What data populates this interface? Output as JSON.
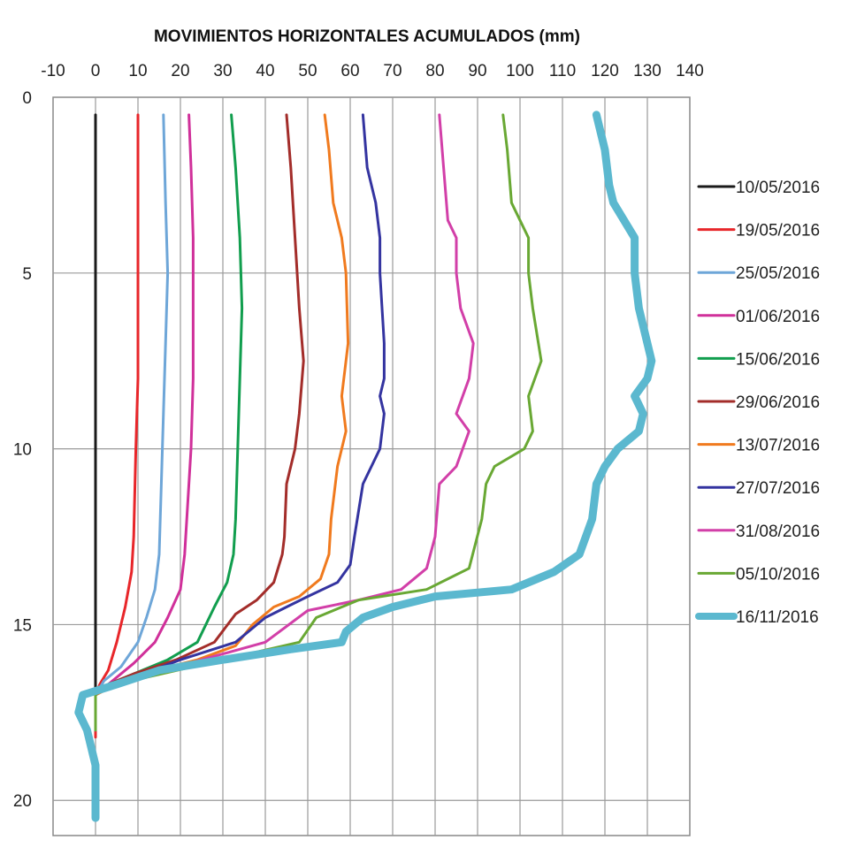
{
  "chart_data": {
    "type": "line",
    "title": "MOVIMIENTOS HORIZONTALES ACUMULADOS (mm)",
    "xlabel": "",
    "ylabel": "",
    "xlim": [
      -10,
      140
    ],
    "ylim": [
      0,
      21
    ],
    "y_inverted": true,
    "x_axis_position": "top",
    "x_ticks": [
      -10,
      0,
      10,
      20,
      30,
      40,
      50,
      60,
      70,
      80,
      90,
      100,
      110,
      120,
      130,
      140
    ],
    "y_ticks": [
      0,
      5,
      10,
      15,
      20
    ],
    "grid": true,
    "legend_position": "right",
    "series": [
      {
        "name": "10/05/2016",
        "color": "#1a1a1a",
        "width": 3,
        "points": [
          [
            0,
            0.5
          ],
          [
            0,
            5
          ],
          [
            0,
            10
          ],
          [
            0,
            15
          ],
          [
            0,
            16.7
          ],
          [
            0,
            17
          ],
          [
            0,
            18
          ]
        ]
      },
      {
        "name": "19/05/2016",
        "color": "#e8262a",
        "width": 3,
        "points": [
          [
            10,
            0.5
          ],
          [
            10,
            3
          ],
          [
            10,
            5
          ],
          [
            10,
            8
          ],
          [
            9.5,
            10
          ],
          [
            9,
            12.5
          ],
          [
            8.5,
            13.5
          ],
          [
            7,
            14.5
          ],
          [
            5,
            15.5
          ],
          [
            3,
            16.3
          ],
          [
            1,
            16.7
          ],
          [
            0,
            17
          ],
          [
            0,
            18.2
          ]
        ]
      },
      {
        "name": "25/05/2016",
        "color": "#6ea6d8",
        "width": 3,
        "points": [
          [
            16,
            0.5
          ],
          [
            16.5,
            3
          ],
          [
            17,
            5
          ],
          [
            16.5,
            7
          ],
          [
            16,
            9
          ],
          [
            15.5,
            11
          ],
          [
            15,
            13
          ],
          [
            14,
            14
          ],
          [
            12,
            14.8
          ],
          [
            10,
            15.5
          ],
          [
            6,
            16.2
          ],
          [
            2,
            16.6
          ],
          [
            0,
            17
          ],
          [
            0,
            18
          ]
        ]
      },
      {
        "name": "01/06/2016",
        "color": "#d0309a",
        "width": 3,
        "points": [
          [
            22,
            0.5
          ],
          [
            22.5,
            2
          ],
          [
            23,
            4
          ],
          [
            23,
            6
          ],
          [
            23,
            8
          ],
          [
            22.5,
            10
          ],
          [
            21.5,
            12
          ],
          [
            21,
            13
          ],
          [
            20,
            14
          ],
          [
            17,
            14.8
          ],
          [
            14,
            15.5
          ],
          [
            9,
            16.1
          ],
          [
            4,
            16.6
          ],
          [
            0,
            17
          ],
          [
            0,
            18
          ]
        ]
      },
      {
        "name": "15/06/2016",
        "color": "#119e4e",
        "width": 3,
        "points": [
          [
            32,
            0.5
          ],
          [
            33,
            2
          ],
          [
            34,
            4
          ],
          [
            34.5,
            6
          ],
          [
            34,
            8
          ],
          [
            33.5,
            10
          ],
          [
            33,
            12
          ],
          [
            32.5,
            13
          ],
          [
            31,
            13.8
          ],
          [
            28,
            14.5
          ],
          [
            24,
            15.5
          ],
          [
            17,
            16
          ],
          [
            9,
            16.4
          ],
          [
            3,
            16.7
          ],
          [
            0,
            17
          ],
          [
            0,
            18
          ]
        ]
      },
      {
        "name": "29/06/2016",
        "color": "#a32d2a",
        "width": 3,
        "points": [
          [
            45,
            0.5
          ],
          [
            46,
            2
          ],
          [
            47,
            4
          ],
          [
            48,
            6
          ],
          [
            49,
            7.5
          ],
          [
            48,
            9
          ],
          [
            47,
            10
          ],
          [
            45,
            11
          ],
          [
            44.5,
            12.5
          ],
          [
            44,
            13
          ],
          [
            42,
            13.8
          ],
          [
            38,
            14.3
          ],
          [
            33,
            14.7
          ],
          [
            28,
            15.5
          ],
          [
            19,
            16
          ],
          [
            9,
            16.4
          ],
          [
            3,
            16.7
          ],
          [
            0,
            17
          ],
          [
            0,
            18
          ]
        ]
      },
      {
        "name": "13/07/2016",
        "color": "#f07a1e",
        "width": 3,
        "points": [
          [
            54,
            0.5
          ],
          [
            55,
            1.5
          ],
          [
            56,
            3
          ],
          [
            58,
            4
          ],
          [
            59,
            5
          ],
          [
            59.5,
            7
          ],
          [
            58,
            8.5
          ],
          [
            59,
            9.5
          ],
          [
            57,
            10.5
          ],
          [
            55.5,
            12
          ],
          [
            55,
            13
          ],
          [
            53,
            13.7
          ],
          [
            48,
            14.2
          ],
          [
            42,
            14.5
          ],
          [
            37,
            15
          ],
          [
            33,
            15.6
          ],
          [
            24,
            16
          ],
          [
            14,
            16.3
          ],
          [
            5,
            16.7
          ],
          [
            0,
            17
          ],
          [
            0,
            18
          ]
        ]
      },
      {
        "name": "27/07/2016",
        "color": "#3434a0",
        "width": 3,
        "points": [
          [
            63,
            0.5
          ],
          [
            64,
            2
          ],
          [
            66,
            3
          ],
          [
            67,
            4
          ],
          [
            67,
            5
          ],
          [
            68,
            7
          ],
          [
            68,
            8
          ],
          [
            67,
            8.5
          ],
          [
            68,
            9
          ],
          [
            67,
            10
          ],
          [
            63,
            11
          ],
          [
            61,
            12.5
          ],
          [
            60,
            13.3
          ],
          [
            57,
            13.8
          ],
          [
            50,
            14.2
          ],
          [
            45,
            14.5
          ],
          [
            40,
            14.8
          ],
          [
            33,
            15.5
          ],
          [
            20,
            16
          ],
          [
            9,
            16.5
          ],
          [
            3,
            16.7
          ],
          [
            0,
            17
          ],
          [
            0,
            18
          ]
        ]
      },
      {
        "name": "31/08/2016",
        "color": "#d23fa8",
        "width": 3,
        "points": [
          [
            81,
            0.5
          ],
          [
            82,
            2
          ],
          [
            83,
            3.5
          ],
          [
            85,
            4
          ],
          [
            85,
            5
          ],
          [
            86,
            6
          ],
          [
            89,
            7
          ],
          [
            88,
            8
          ],
          [
            85,
            9
          ],
          [
            88,
            9.5
          ],
          [
            85,
            10.5
          ],
          [
            81,
            11
          ],
          [
            80,
            12.5
          ],
          [
            78,
            13.4
          ],
          [
            72,
            14
          ],
          [
            62,
            14.3
          ],
          [
            50,
            14.6
          ],
          [
            40,
            15.5
          ],
          [
            25,
            16
          ],
          [
            10,
            16.5
          ],
          [
            3,
            16.7
          ],
          [
            0,
            17
          ],
          [
            0,
            18
          ]
        ]
      },
      {
        "name": "05/10/2016",
        "color": "#69a834",
        "width": 3,
        "points": [
          [
            96,
            0.5
          ],
          [
            97,
            1.5
          ],
          [
            98,
            3
          ],
          [
            102,
            4
          ],
          [
            102,
            5
          ],
          [
            103,
            6
          ],
          [
            105,
            7.5
          ],
          [
            102,
            8.5
          ],
          [
            103,
            9.5
          ],
          [
            101,
            10
          ],
          [
            94,
            10.5
          ],
          [
            92,
            11
          ],
          [
            91,
            12
          ],
          [
            88,
            13.4
          ],
          [
            78,
            14
          ],
          [
            62,
            14.3
          ],
          [
            52,
            14.8
          ],
          [
            48,
            15.5
          ],
          [
            30,
            16
          ],
          [
            12,
            16.5
          ],
          [
            3,
            16.7
          ],
          [
            0,
            17
          ],
          [
            0,
            18
          ]
        ]
      },
      {
        "name": "16/11/2016",
        "color": "#5bb8cf",
        "width": 9,
        "points": [
          [
            118,
            0.5
          ],
          [
            120,
            1.5
          ],
          [
            121,
            2.5
          ],
          [
            122,
            3
          ],
          [
            127,
            4
          ],
          [
            127,
            5
          ],
          [
            128,
            6
          ],
          [
            130,
            7
          ],
          [
            131,
            7.5
          ],
          [
            130,
            8
          ],
          [
            127,
            8.5
          ],
          [
            129,
            9
          ],
          [
            128,
            9.5
          ],
          [
            123,
            10
          ],
          [
            120,
            10.5
          ],
          [
            118,
            11
          ],
          [
            117,
            12
          ],
          [
            114,
            13
          ],
          [
            108,
            13.5
          ],
          [
            98,
            14
          ],
          [
            80,
            14.2
          ],
          [
            70,
            14.5
          ],
          [
            63,
            14.8
          ],
          [
            59,
            15.2
          ],
          [
            58,
            15.5
          ],
          [
            46,
            15.7
          ],
          [
            30,
            16
          ],
          [
            15,
            16.3
          ],
          [
            5,
            16.7
          ],
          [
            -3,
            17
          ],
          [
            -4,
            17.5
          ],
          [
            -2,
            18
          ],
          [
            0,
            19
          ],
          [
            0,
            20
          ],
          [
            0,
            20.5
          ]
        ]
      }
    ]
  }
}
